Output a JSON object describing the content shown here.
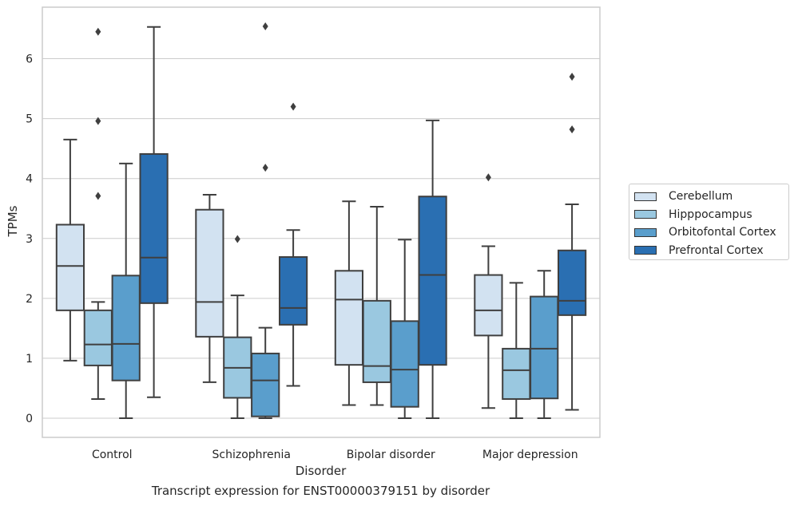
{
  "caption": "Transcript expression for ENST00000379151 by disorder",
  "chart_data": {
    "type": "box",
    "xlabel": "Disorder",
    "ylabel": "TPMs",
    "ylim": [
      -0.32,
      6.86
    ],
    "yticks": [
      0,
      1,
      2,
      3,
      4,
      5,
      6
    ],
    "grid": "horizontal",
    "legend_position": "right",
    "categories": [
      "Control",
      "Schizophrenia",
      "Bipolar disorder",
      "Major depression"
    ],
    "series": [
      {
        "name": "Cerebellum",
        "color": "#d2e2f1",
        "boxes": [
          {
            "whislo": 0.96,
            "q1": 1.8,
            "med": 2.54,
            "q3": 3.23,
            "whishi": 4.65,
            "fliers": []
          },
          {
            "whislo": 0.6,
            "q1": 1.36,
            "med": 1.94,
            "q3": 3.48,
            "whishi": 3.73,
            "fliers": []
          },
          {
            "whislo": 0.22,
            "q1": 0.89,
            "med": 1.98,
            "q3": 2.46,
            "whishi": 3.62,
            "fliers": []
          },
          {
            "whislo": 0.17,
            "q1": 1.38,
            "med": 1.8,
            "q3": 2.39,
            "whishi": 2.87,
            "fliers": [
              4.02
            ]
          }
        ]
      },
      {
        "name": "Hipppocampus",
        "color": "#9ac8e0",
        "boxes": [
          {
            "whislo": 0.32,
            "q1": 0.88,
            "med": 1.23,
            "q3": 1.8,
            "whishi": 1.94,
            "fliers": [
              3.71,
              4.96,
              6.45
            ]
          },
          {
            "whislo": 0.0,
            "q1": 0.34,
            "med": 0.84,
            "q3": 1.35,
            "whishi": 2.05,
            "fliers": [
              2.99
            ]
          },
          {
            "whislo": 0.22,
            "q1": 0.6,
            "med": 0.87,
            "q3": 1.96,
            "whishi": 3.53,
            "fliers": []
          },
          {
            "whislo": 0.0,
            "q1": 0.32,
            "med": 0.8,
            "q3": 1.16,
            "whishi": 2.26,
            "fliers": []
          }
        ]
      },
      {
        "name": "Orbitofontal Cortex",
        "color": "#5a9ecc",
        "boxes": [
          {
            "whislo": 0.0,
            "q1": 0.63,
            "med": 1.24,
            "q3": 2.38,
            "whishi": 4.25,
            "fliers": []
          },
          {
            "whislo": 0.0,
            "q1": 0.03,
            "med": 0.63,
            "q3": 1.08,
            "whishi": 1.51,
            "fliers": [
              4.18,
              6.54
            ]
          },
          {
            "whislo": 0.0,
            "q1": 0.19,
            "med": 0.81,
            "q3": 1.62,
            "whishi": 2.98,
            "fliers": []
          },
          {
            "whislo": 0.0,
            "q1": 0.33,
            "med": 1.16,
            "q3": 2.03,
            "whishi": 2.46,
            "fliers": []
          }
        ]
      },
      {
        "name": "Prefrontal Cortex",
        "color": "#2a6fb2",
        "boxes": [
          {
            "whislo": 0.35,
            "q1": 1.92,
            "med": 2.68,
            "q3": 4.41,
            "whishi": 6.53,
            "fliers": []
          },
          {
            "whislo": 0.54,
            "q1": 1.56,
            "med": 1.84,
            "q3": 2.69,
            "whishi": 3.14,
            "fliers": [
              5.2
            ]
          },
          {
            "whislo": 0.0,
            "q1": 0.89,
            "med": 2.39,
            "q3": 3.7,
            "whishi": 4.97,
            "fliers": []
          },
          {
            "whislo": 0.14,
            "q1": 1.72,
            "med": 1.96,
            "q3": 2.8,
            "whishi": 3.57,
            "fliers": [
              4.82,
              5.7
            ]
          }
        ]
      }
    ]
  }
}
